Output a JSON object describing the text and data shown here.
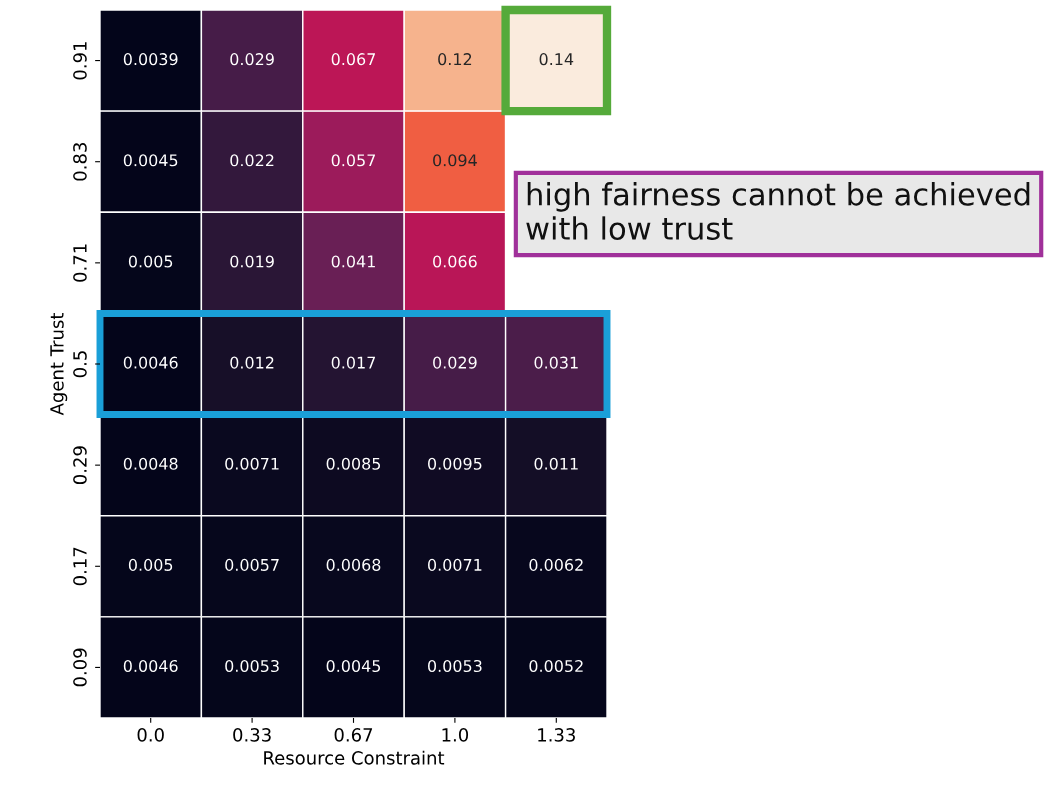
{
  "chart_data": {
    "type": "heatmap",
    "xlabel": "Resource Constraint",
    "ylabel": "Agent Trust",
    "categories": [
      "0.0",
      "0.33",
      "0.67",
      "1.0",
      "1.33"
    ],
    "y_categories": [
      "0.91",
      "0.83",
      "0.71",
      "0.5",
      "0.29",
      "0.17",
      "0.09"
    ],
    "cells": [
      [
        0.0039,
        0.029,
        0.067,
        0.12,
        0.14
      ],
      [
        0.0045,
        0.022,
        0.057,
        0.094,
        null
      ],
      [
        0.005,
        0.019,
        0.041,
        0.066,
        null
      ],
      [
        0.0046,
        0.012,
        0.017,
        0.029,
        0.031
      ],
      [
        0.0048,
        0.0071,
        0.0085,
        0.0095,
        0.011
      ],
      [
        0.005,
        0.0057,
        0.0068,
        0.0071,
        0.0062
      ],
      [
        0.0046,
        0.0053,
        0.0045,
        0.0053,
        0.0052
      ]
    ],
    "data_labels": true,
    "annotations": [
      "high fairness cannot be achieved with low trust"
    ]
  }
}
